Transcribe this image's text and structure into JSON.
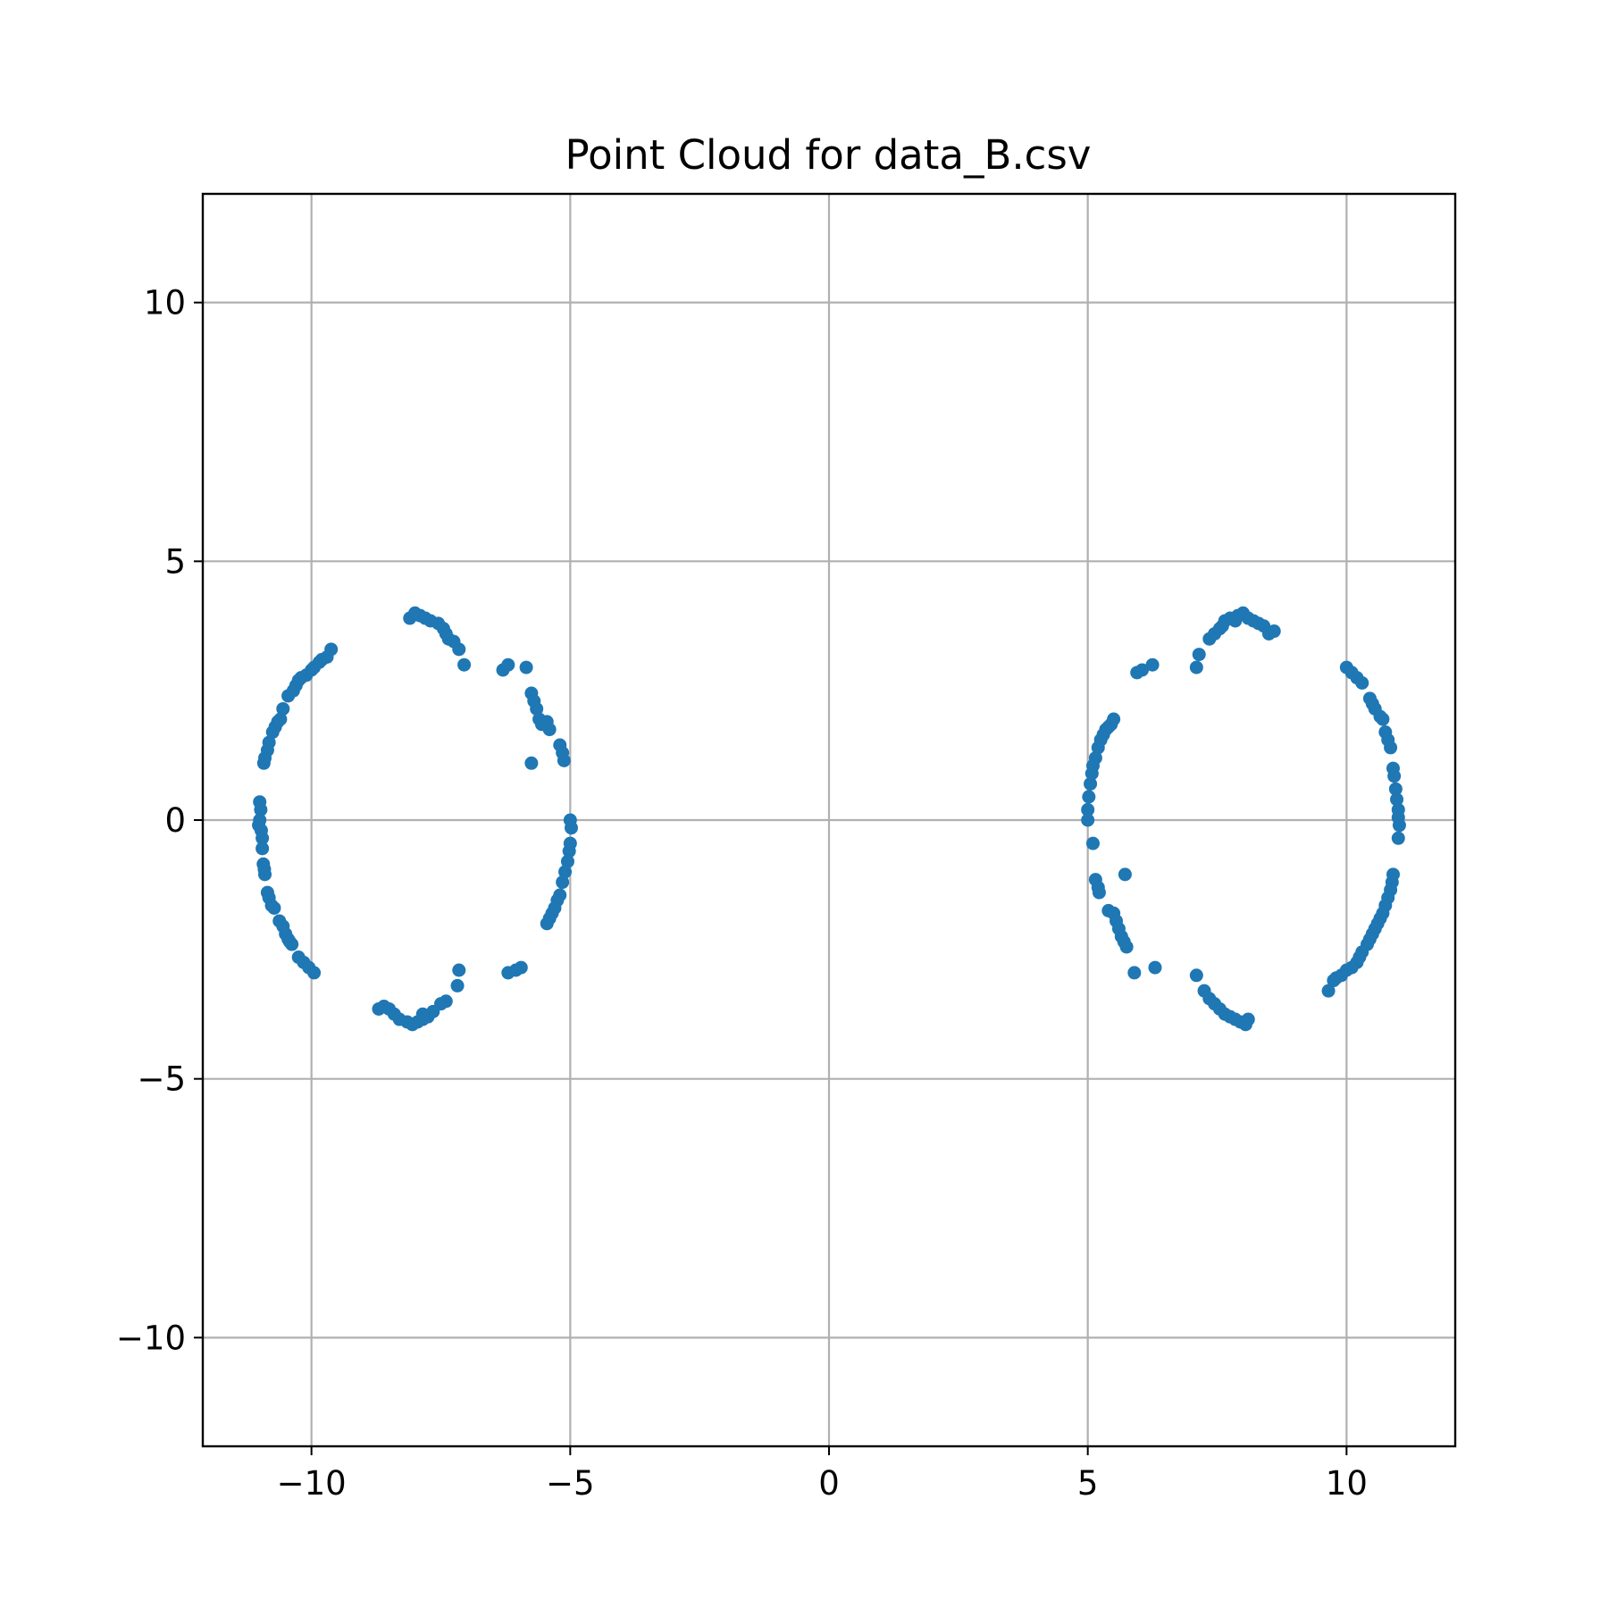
{
  "chart_data": {
    "type": "scatter",
    "title": "Point Cloud for data_B.csv",
    "xlabel": "",
    "ylabel": "",
    "xlim": [
      -12.1,
      12.1
    ],
    "ylim": [
      -12.1,
      12.1
    ],
    "x_ticks": [
      -10,
      -5,
      0,
      5,
      10
    ],
    "y_ticks": [
      -10,
      -5,
      0,
      5,
      10
    ],
    "x_tick_labels": [
      "−10",
      "−5",
      "0",
      "5",
      "10"
    ],
    "y_tick_labels": [
      "−10",
      "−5",
      "0",
      "5",
      "10"
    ],
    "grid": true,
    "marker_color": "#1f77b4",
    "points": [
      [
        -11.0,
        0.35
      ],
      [
        -10.98,
        0.2
      ],
      [
        -11.0,
        0.0
      ],
      [
        -11.02,
        -0.1
      ],
      [
        -10.97,
        -0.2
      ],
      [
        -10.95,
        -0.35
      ],
      [
        -10.95,
        -0.55
      ],
      [
        -10.93,
        -0.85
      ],
      [
        -10.91,
        -0.95
      ],
      [
        -10.9,
        -1.05
      ],
      [
        -10.85,
        -1.4
      ],
      [
        -10.82,
        -1.5
      ],
      [
        -10.77,
        -1.65
      ],
      [
        -10.72,
        -1.7
      ],
      [
        -10.62,
        -1.95
      ],
      [
        -10.55,
        -2.05
      ],
      [
        -10.5,
        -2.2
      ],
      [
        -10.45,
        -2.3
      ],
      [
        -10.42,
        -2.35
      ],
      [
        -10.38,
        -2.4
      ],
      [
        -10.25,
        -2.65
      ],
      [
        -10.15,
        -2.75
      ],
      [
        -10.05,
        -2.85
      ],
      [
        -9.95,
        -2.95
      ],
      [
        -10.92,
        1.1
      ],
      [
        -10.9,
        1.2
      ],
      [
        -10.85,
        1.35
      ],
      [
        -10.82,
        1.5
      ],
      [
        -10.75,
        1.7
      ],
      [
        -10.7,
        1.8
      ],
      [
        -10.65,
        1.9
      ],
      [
        -10.6,
        1.95
      ],
      [
        -10.55,
        2.15
      ],
      [
        -10.45,
        2.4
      ],
      [
        -10.35,
        2.5
      ],
      [
        -10.3,
        2.6
      ],
      [
        -10.25,
        2.7
      ],
      [
        -10.2,
        2.75
      ],
      [
        -10.1,
        2.8
      ],
      [
        -10.0,
        2.9
      ],
      [
        -9.95,
        2.95
      ],
      [
        -9.85,
        3.05
      ],
      [
        -9.8,
        3.1
      ],
      [
        -9.7,
        3.15
      ],
      [
        -9.62,
        3.3
      ],
      [
        -8.1,
        3.9
      ],
      [
        -8.0,
        4.0
      ],
      [
        -7.9,
        3.95
      ],
      [
        -7.8,
        3.9
      ],
      [
        -7.7,
        3.85
      ],
      [
        -7.55,
        3.8
      ],
      [
        -7.45,
        3.7
      ],
      [
        -7.4,
        3.6
      ],
      [
        -7.35,
        3.5
      ],
      [
        -7.25,
        3.45
      ],
      [
        -7.15,
        3.3
      ],
      [
        -7.05,
        3.0
      ],
      [
        -6.3,
        2.9
      ],
      [
        -6.2,
        3.0
      ],
      [
        -5.85,
        2.95
      ],
      [
        -5.75,
        2.45
      ],
      [
        -5.7,
        2.3
      ],
      [
        -5.65,
        2.15
      ],
      [
        -5.6,
        1.95
      ],
      [
        -5.55,
        1.85
      ],
      [
        -5.45,
        1.9
      ],
      [
        -5.4,
        1.75
      ],
      [
        -5.2,
        1.45
      ],
      [
        -5.15,
        1.3
      ],
      [
        -5.12,
        1.15
      ],
      [
        -5.75,
        1.1
      ],
      [
        -5.0,
        0.0
      ],
      [
        -4.98,
        -0.15
      ],
      [
        -5.0,
        -0.45
      ],
      [
        -5.02,
        -0.6
      ],
      [
        -5.05,
        -0.8
      ],
      [
        -5.1,
        -1.0
      ],
      [
        -5.15,
        -1.2
      ],
      [
        -5.2,
        -1.45
      ],
      [
        -5.25,
        -1.55
      ],
      [
        -5.3,
        -1.7
      ],
      [
        -5.35,
        -1.8
      ],
      [
        -5.4,
        -1.9
      ],
      [
        -5.45,
        -2.0
      ],
      [
        -5.95,
        -2.85
      ],
      [
        -6.05,
        -2.9
      ],
      [
        -6.2,
        -2.95
      ],
      [
        -7.15,
        -2.9
      ],
      [
        -7.18,
        -3.2
      ],
      [
        -7.4,
        -3.5
      ],
      [
        -7.5,
        -3.55
      ],
      [
        -7.65,
        -3.7
      ],
      [
        -7.75,
        -3.8
      ],
      [
        -7.85,
        -3.85
      ],
      [
        -7.95,
        -3.9
      ],
      [
        -8.05,
        -3.95
      ],
      [
        -8.15,
        -3.9
      ],
      [
        -8.3,
        -3.85
      ],
      [
        -8.4,
        -3.75
      ],
      [
        -8.5,
        -3.65
      ],
      [
        -8.6,
        -3.6
      ],
      [
        -8.7,
        -3.65
      ],
      [
        -7.85,
        -3.75
      ],
      [
        5.0,
        0.0
      ],
      [
        5.0,
        0.2
      ],
      [
        5.02,
        0.45
      ],
      [
        5.05,
        0.7
      ],
      [
        5.08,
        0.9
      ],
      [
        5.1,
        1.05
      ],
      [
        5.15,
        1.2
      ],
      [
        5.2,
        1.4
      ],
      [
        5.25,
        1.55
      ],
      [
        5.3,
        1.65
      ],
      [
        5.35,
        1.75
      ],
      [
        5.4,
        1.8
      ],
      [
        5.45,
        1.85
      ],
      [
        5.5,
        1.95
      ],
      [
        5.1,
        -0.45
      ],
      [
        5.15,
        -1.15
      ],
      [
        5.2,
        -1.3
      ],
      [
        5.22,
        -1.4
      ],
      [
        5.4,
        -1.75
      ],
      [
        5.5,
        -1.8
      ],
      [
        5.55,
        -1.95
      ],
      [
        5.6,
        -2.1
      ],
      [
        5.65,
        -2.25
      ],
      [
        5.7,
        -2.35
      ],
      [
        5.75,
        -2.45
      ],
      [
        5.72,
        -1.05
      ],
      [
        5.9,
        -2.95
      ],
      [
        6.3,
        -2.85
      ],
      [
        5.95,
        2.85
      ],
      [
        6.05,
        2.9
      ],
      [
        6.25,
        3.0
      ],
      [
        7.1,
        2.95
      ],
      [
        7.15,
        3.2
      ],
      [
        7.35,
        3.5
      ],
      [
        7.45,
        3.6
      ],
      [
        7.55,
        3.7
      ],
      [
        7.6,
        3.75
      ],
      [
        7.65,
        3.85
      ],
      [
        7.75,
        3.9
      ],
      [
        7.85,
        3.85
      ],
      [
        7.9,
        3.95
      ],
      [
        8.0,
        4.0
      ],
      [
        8.1,
        3.9
      ],
      [
        8.2,
        3.85
      ],
      [
        8.3,
        3.8
      ],
      [
        8.4,
        3.75
      ],
      [
        8.5,
        3.6
      ],
      [
        8.6,
        3.65
      ],
      [
        10.0,
        2.95
      ],
      [
        10.1,
        2.85
      ],
      [
        10.2,
        2.75
      ],
      [
        10.3,
        2.65
      ],
      [
        10.45,
        2.35
      ],
      [
        10.5,
        2.25
      ],
      [
        10.55,
        2.15
      ],
      [
        10.65,
        2.0
      ],
      [
        10.7,
        1.95
      ],
      [
        10.75,
        1.7
      ],
      [
        10.8,
        1.55
      ],
      [
        10.85,
        1.4
      ],
      [
        10.9,
        1.0
      ],
      [
        10.92,
        0.85
      ],
      [
        10.95,
        0.6
      ],
      [
        10.97,
        0.4
      ],
      [
        11.0,
        0.2
      ],
      [
        11.0,
        0.05
      ],
      [
        11.02,
        -0.1
      ],
      [
        11.0,
        -0.35
      ],
      [
        10.9,
        -1.05
      ],
      [
        10.88,
        -1.2
      ],
      [
        10.85,
        -1.35
      ],
      [
        10.8,
        -1.5
      ],
      [
        10.75,
        -1.65
      ],
      [
        10.7,
        -1.8
      ],
      [
        10.65,
        -1.9
      ],
      [
        10.6,
        -2.0
      ],
      [
        10.55,
        -2.1
      ],
      [
        10.5,
        -2.2
      ],
      [
        10.45,
        -2.3
      ],
      [
        10.4,
        -2.4
      ],
      [
        10.3,
        -2.55
      ],
      [
        10.25,
        -2.65
      ],
      [
        10.2,
        -2.75
      ],
      [
        10.1,
        -2.85
      ],
      [
        10.0,
        -2.9
      ],
      [
        9.9,
        -3.0
      ],
      [
        9.8,
        -3.05
      ],
      [
        9.75,
        -3.1
      ],
      [
        9.65,
        -3.3
      ],
      [
        7.1,
        -3.0
      ],
      [
        7.25,
        -3.3
      ],
      [
        7.35,
        -3.45
      ],
      [
        7.45,
        -3.55
      ],
      [
        7.55,
        -3.65
      ],
      [
        7.65,
        -3.75
      ],
      [
        7.75,
        -3.8
      ],
      [
        7.85,
        -3.85
      ],
      [
        7.95,
        -3.9
      ],
      [
        8.05,
        -3.95
      ],
      [
        8.1,
        -3.85
      ]
    ]
  }
}
